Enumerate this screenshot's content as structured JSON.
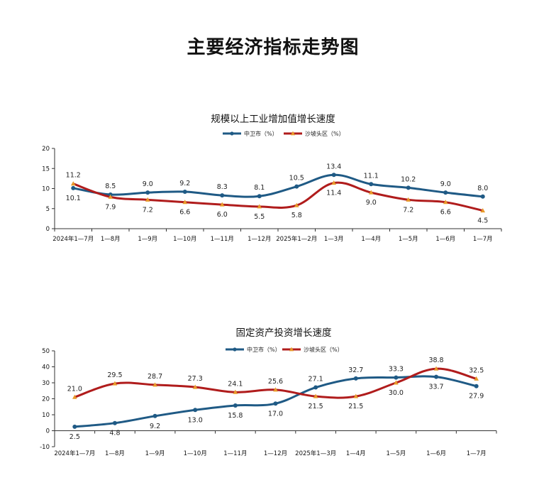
{
  "page": {
    "title": "主要经济指标走势图"
  },
  "chart_data": [
    {
      "type": "line",
      "title": "规模以上工业增加值增长速度",
      "xlabel": "",
      "ylabel": "",
      "categories": [
        "2024年1—7月",
        "1—8月",
        "1—9月",
        "1—10月",
        "1—11月",
        "1—12月",
        "2025年1—2月",
        "1—3月",
        "1—4月",
        "1—5月",
        "1—6月",
        "1—7月"
      ],
      "ylim": [
        0,
        20
      ],
      "yticks": [
        0,
        5,
        10,
        15,
        20
      ],
      "legend_position": "top",
      "series": [
        {
          "name": "中卫市（%）",
          "color": "#1f5a85",
          "marker": "circle",
          "values": [
            10.1,
            8.5,
            9.0,
            9.2,
            8.3,
            8.1,
            10.5,
            13.4,
            11.1,
            10.2,
            9.0,
            8.0
          ],
          "labels": [
            "10.1",
            "8.5",
            "9.0",
            "9.2",
            "8.3",
            "8.1",
            "10.5",
            "13.4",
            "11.1",
            "10.2",
            "9.0",
            "8.0"
          ]
        },
        {
          "name": "沙坡头区（%）",
          "color": "#b01c1c",
          "marker": "triangle",
          "values": [
            11.2,
            7.9,
            7.2,
            6.6,
            6.0,
            5.5,
            5.8,
            11.4,
            9.0,
            7.2,
            6.6,
            4.5
          ],
          "labels": [
            "11.2",
            "7.9",
            "7.2",
            "6.6",
            "6.0",
            "5.5",
            "5.8",
            "11.4",
            "9.0",
            "7.2",
            "6.6",
            "4.5"
          ]
        }
      ]
    },
    {
      "type": "line",
      "title": "固定资产投资增长速度",
      "xlabel": "",
      "ylabel": "",
      "categories": [
        "2024年1—7月",
        "1—8月",
        "1—9月",
        "1—10月",
        "1—11月",
        "1—12月",
        "2025年1—3月",
        "1—4月",
        "1—5月",
        "1—6月",
        "1—7月"
      ],
      "ylim": [
        -10,
        50
      ],
      "yticks": [
        -10,
        0,
        10,
        20,
        30,
        40,
        50
      ],
      "legend_position": "top",
      "series": [
        {
          "name": "中卫市（%）",
          "color": "#1f5a85",
          "marker": "circle",
          "values": [
            2.5,
            4.8,
            9.2,
            13.0,
            15.8,
            17.0,
            27.1,
            32.7,
            33.3,
            33.7,
            27.9
          ],
          "labels": [
            "2.5",
            "4.8",
            "9.2",
            "13.0",
            "15.8",
            "17.0",
            "27.1",
            "32.7",
            "33.3",
            "33.7",
            "27.9"
          ]
        },
        {
          "name": "沙坡头区（%）",
          "color": "#b01c1c",
          "marker": "triangle",
          "values": [
            21.0,
            29.5,
            28.7,
            27.3,
            24.1,
            25.6,
            21.5,
            21.5,
            30.0,
            38.8,
            32.5
          ],
          "labels": [
            "21.0",
            "29.5",
            "28.7",
            "27.3",
            "24.1",
            "25.6",
            "21.5",
            "21.5",
            "30.0",
            "38.8",
            "32.5"
          ]
        }
      ]
    }
  ]
}
